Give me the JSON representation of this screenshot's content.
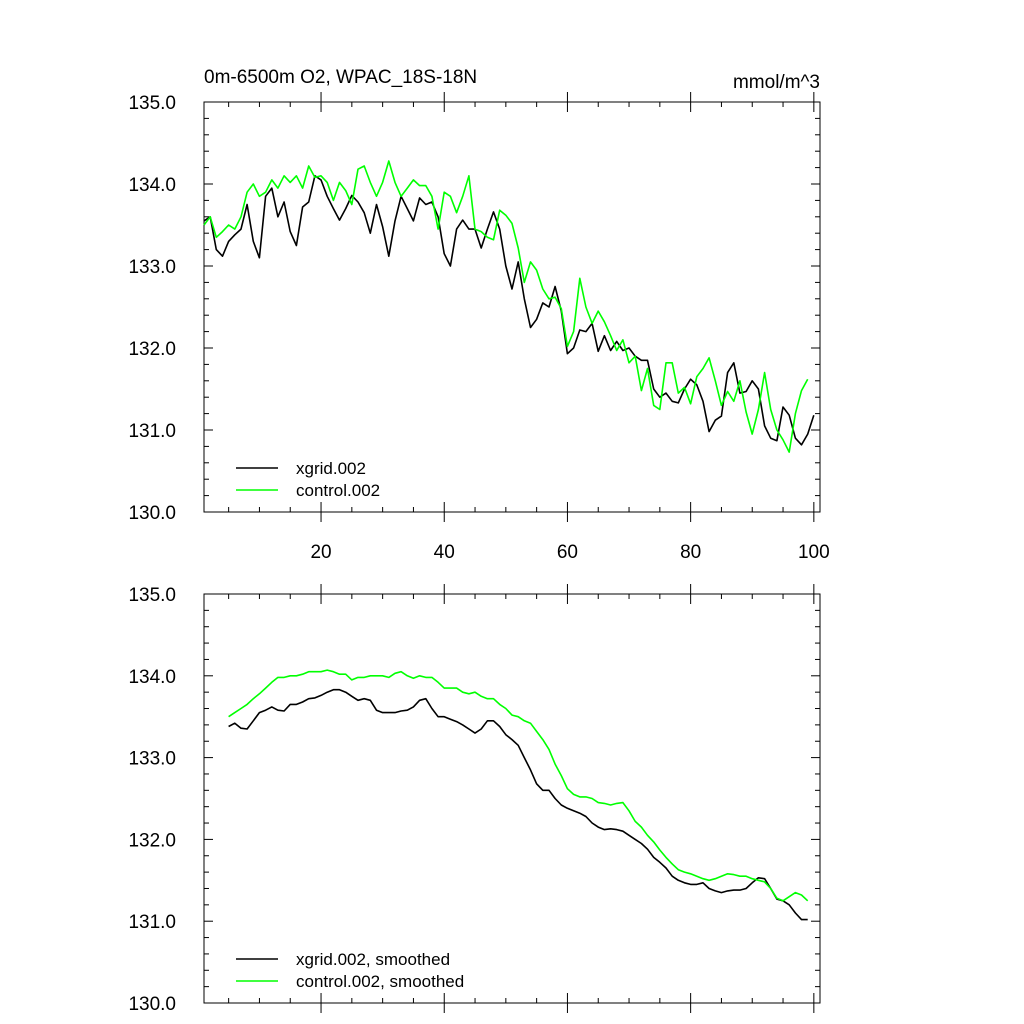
{
  "chart_data": [
    {
      "type": "line",
      "title": "0m-6500m O2, WPAC_18S-18N",
      "units": "mmol/m^3",
      "xlim": [
        1,
        101
      ],
      "ylim": [
        130,
        135
      ],
      "xticks": [
        20,
        40,
        60,
        80,
        100
      ],
      "xtick_labels": [
        "20",
        "40",
        "60",
        "80",
        "100"
      ],
      "yticks": [
        130,
        131,
        132,
        133,
        134,
        135
      ],
      "ytick_labels": [
        "130.0",
        "131.0",
        "132.0",
        "133.0",
        "134.0",
        "135.0"
      ],
      "legend_position": "bottom-left",
      "series": [
        {
          "name": "xgrid.002",
          "color": "#000000",
          "x_start": 1,
          "values": [
            133.55,
            133.6,
            133.2,
            133.12,
            133.3,
            133.38,
            133.45,
            133.75,
            133.3,
            133.1,
            133.85,
            133.95,
            133.6,
            133.78,
            133.42,
            133.25,
            133.72,
            133.78,
            134.1,
            134.05,
            133.85,
            133.7,
            133.56,
            133.7,
            133.86,
            133.78,
            133.65,
            133.4,
            133.75,
            133.48,
            133.12,
            133.55,
            133.85,
            133.7,
            133.55,
            133.83,
            133.75,
            133.78,
            133.6,
            133.15,
            133.0,
            133.45,
            133.56,
            133.45,
            133.45,
            133.22,
            133.45,
            133.66,
            133.45,
            133.0,
            132.72,
            133.05,
            132.6,
            132.25,
            132.35,
            132.55,
            132.5,
            132.75,
            132.45,
            131.93,
            132.0,
            132.22,
            132.2,
            132.3,
            131.96,
            132.15,
            131.97,
            132.08,
            131.97,
            132.0,
            131.9,
            131.85,
            131.85,
            131.5,
            131.4,
            131.45,
            131.35,
            131.33,
            131.5,
            131.62,
            131.55,
            131.35,
            130.98,
            131.12,
            131.17,
            131.7,
            131.82,
            131.45,
            131.47,
            131.6,
            131.5,
            131.05,
            130.9,
            130.87,
            131.28,
            131.18,
            130.9,
            130.82,
            130.95,
            131.18
          ]
        },
        {
          "name": "control.002",
          "color": "#00ff00",
          "x_start": 1,
          "values": [
            133.5,
            133.6,
            133.35,
            133.42,
            133.5,
            133.45,
            133.6,
            133.9,
            134.0,
            133.85,
            133.9,
            134.05,
            133.95,
            134.1,
            134.02,
            134.1,
            133.95,
            134.22,
            134.08,
            134.1,
            134.02,
            133.8,
            134.02,
            133.92,
            133.75,
            134.18,
            134.22,
            134.02,
            133.85,
            134.02,
            134.28,
            134.02,
            133.85,
            133.95,
            134.05,
            133.98,
            133.98,
            133.85,
            133.45,
            133.9,
            133.85,
            133.65,
            133.85,
            134.1,
            133.45,
            133.42,
            133.35,
            133.32,
            133.68,
            133.62,
            133.52,
            133.22,
            132.8,
            133.05,
            132.95,
            132.72,
            132.6,
            132.62,
            132.48,
            132.02,
            132.2,
            132.85,
            132.5,
            132.3,
            132.45,
            132.32,
            132.15,
            131.97,
            132.1,
            131.82,
            131.9,
            131.48,
            131.75,
            131.3,
            131.25,
            131.82,
            131.82,
            131.45,
            131.52,
            131.32,
            131.65,
            131.75,
            131.88,
            131.6,
            131.3,
            131.47,
            131.35,
            131.6,
            131.22,
            130.95,
            131.25,
            131.7,
            131.25,
            131.0,
            130.88,
            130.73,
            131.2,
            131.48,
            131.62
          ]
        }
      ]
    },
    {
      "type": "line",
      "title": "",
      "xlim": [
        1,
        101
      ],
      "ylim": [
        130,
        135
      ],
      "xticks": [
        20,
        40,
        60,
        80,
        100
      ],
      "xtick_labels": [],
      "yticks": [
        130,
        131,
        132,
        133,
        134,
        135
      ],
      "ytick_labels": [
        "130.0",
        "131.0",
        "132.0",
        "133.0",
        "134.0",
        "135.0"
      ],
      "legend_position": "bottom-left",
      "series": [
        {
          "name": "xgrid.002, smoothed",
          "color": "#000000",
          "x_start": 5,
          "values": [
            133.38,
            133.42,
            133.36,
            133.35,
            133.45,
            133.55,
            133.58,
            133.62,
            133.58,
            133.57,
            133.65,
            133.65,
            133.68,
            133.72,
            133.73,
            133.76,
            133.8,
            133.83,
            133.83,
            133.8,
            133.75,
            133.7,
            133.72,
            133.7,
            133.58,
            133.55,
            133.55,
            133.55,
            133.57,
            133.58,
            133.62,
            133.7,
            133.72,
            133.6,
            133.5,
            133.5,
            133.47,
            133.44,
            133.4,
            133.35,
            133.3,
            133.35,
            133.45,
            133.45,
            133.38,
            133.28,
            133.22,
            133.15,
            133.0,
            132.85,
            132.68,
            132.6,
            132.6,
            132.5,
            132.42,
            132.38,
            132.35,
            132.32,
            132.28,
            132.2,
            132.15,
            132.12,
            132.13,
            132.12,
            132.1,
            132.05,
            132.0,
            131.95,
            131.88,
            131.78,
            131.72,
            131.65,
            131.55,
            131.5,
            131.47,
            131.45,
            131.45,
            131.47,
            131.4,
            131.37,
            131.35,
            131.37,
            131.38,
            131.38,
            131.4,
            131.47,
            131.53,
            131.52,
            131.4,
            131.27,
            131.25,
            131.2,
            131.1,
            131.02,
            131.02
          ]
        },
        {
          "name": "control.002, smoothed",
          "color": "#00ff00",
          "x_start": 5,
          "values": [
            133.5,
            133.55,
            133.6,
            133.65,
            133.72,
            133.78,
            133.85,
            133.92,
            133.98,
            133.98,
            134.0,
            134.0,
            134.02,
            134.05,
            134.05,
            134.05,
            134.07,
            134.05,
            134.02,
            134.02,
            133.95,
            133.98,
            133.98,
            134.0,
            134.0,
            134.0,
            133.98,
            134.03,
            134.05,
            134.0,
            133.97,
            134.0,
            133.98,
            133.98,
            133.92,
            133.85,
            133.85,
            133.85,
            133.8,
            133.78,
            133.8,
            133.75,
            133.72,
            133.72,
            133.65,
            133.6,
            133.52,
            133.5,
            133.45,
            133.42,
            133.32,
            133.22,
            133.1,
            132.92,
            132.78,
            132.62,
            132.55,
            132.52,
            132.52,
            132.5,
            132.45,
            132.44,
            132.42,
            132.44,
            132.45,
            132.35,
            132.22,
            132.15,
            132.05,
            131.97,
            131.87,
            131.78,
            131.7,
            131.63,
            131.6,
            131.58,
            131.55,
            131.52,
            131.5,
            131.52,
            131.55,
            131.58,
            131.57,
            131.55,
            131.55,
            131.52,
            131.5,
            131.48,
            131.4,
            131.28,
            131.25,
            131.3,
            131.35,
            131.32,
            131.25
          ]
        }
      ]
    }
  ]
}
